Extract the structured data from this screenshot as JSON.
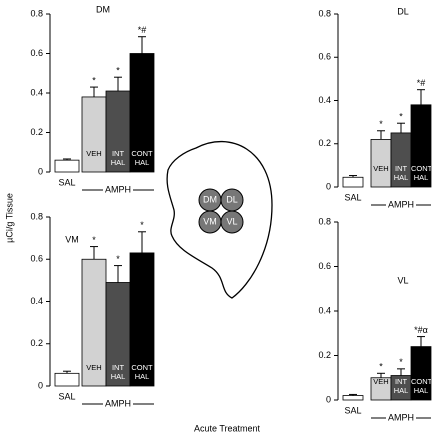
{
  "ylabel": "µCi/g Tissue",
  "xlabel": "Acute Treatment",
  "brain_regions": [
    "DM",
    "DL",
    "VM",
    "VL"
  ],
  "chart_data": [
    {
      "type": "bar",
      "title": "DM",
      "categories": [
        "SAL",
        "VEH",
        "INT HAL",
        "CONT HAL"
      ],
      "group_label": "AMPH",
      "values": [
        0.06,
        0.38,
        0.41,
        0.6
      ],
      "errors": [
        0.006,
        0.05,
        0.07,
        0.085
      ],
      "annotations": [
        null,
        "*",
        "*",
        "*#"
      ],
      "colors": [
        "#ffffff",
        "#d2d2d2",
        "#4e4e4e",
        "#000000"
      ],
      "ylim": [
        0,
        0.8
      ],
      "yticks": [
        0,
        0.2,
        0.4,
        0.6,
        0.8
      ]
    },
    {
      "type": "bar",
      "title": "DL",
      "categories": [
        "SAL",
        "VEH",
        "INT HAL",
        "CONT HAL"
      ],
      "group_label": "AMPH",
      "values": [
        0.045,
        0.22,
        0.25,
        0.38
      ],
      "errors": [
        0.008,
        0.04,
        0.045,
        0.07
      ],
      "annotations": [
        null,
        "*",
        "*",
        "*#"
      ],
      "colors": [
        "#ffffff",
        "#d2d2d2",
        "#4e4e4e",
        "#000000"
      ],
      "ylim": [
        0,
        0.8
      ],
      "yticks": [
        0,
        0.2,
        0.4,
        0.6,
        0.8
      ]
    },
    {
      "type": "bar",
      "title": "VM",
      "categories": [
        "SAL",
        "VEH",
        "INT HAL",
        "CONT HAL"
      ],
      "group_label": "AMPH",
      "values": [
        0.06,
        0.6,
        0.49,
        0.63
      ],
      "errors": [
        0.01,
        0.06,
        0.08,
        0.1
      ],
      "annotations": [
        null,
        "*",
        "*",
        "*"
      ],
      "colors": [
        "#ffffff",
        "#d2d2d2",
        "#4e4e4e",
        "#000000"
      ],
      "ylim": [
        0,
        0.8
      ],
      "yticks": [
        0,
        0.2,
        0.4,
        0.6,
        0.8
      ]
    },
    {
      "type": "bar",
      "title": "VL",
      "categories": [
        "SAL",
        "VEH",
        "INT HAL",
        "CONT HAL"
      ],
      "group_label": "AMPH",
      "values": [
        0.02,
        0.1,
        0.11,
        0.24
      ],
      "errors": [
        0.005,
        0.02,
        0.03,
        0.045
      ],
      "annotations": [
        null,
        "*",
        "*",
        "*#α"
      ],
      "colors": [
        "#ffffff",
        "#d2d2d2",
        "#4e4e4e",
        "#000000"
      ],
      "ylim": [
        0,
        0.8
      ],
      "yticks": [
        0,
        0.2,
        0.4,
        0.6,
        0.8
      ]
    }
  ]
}
